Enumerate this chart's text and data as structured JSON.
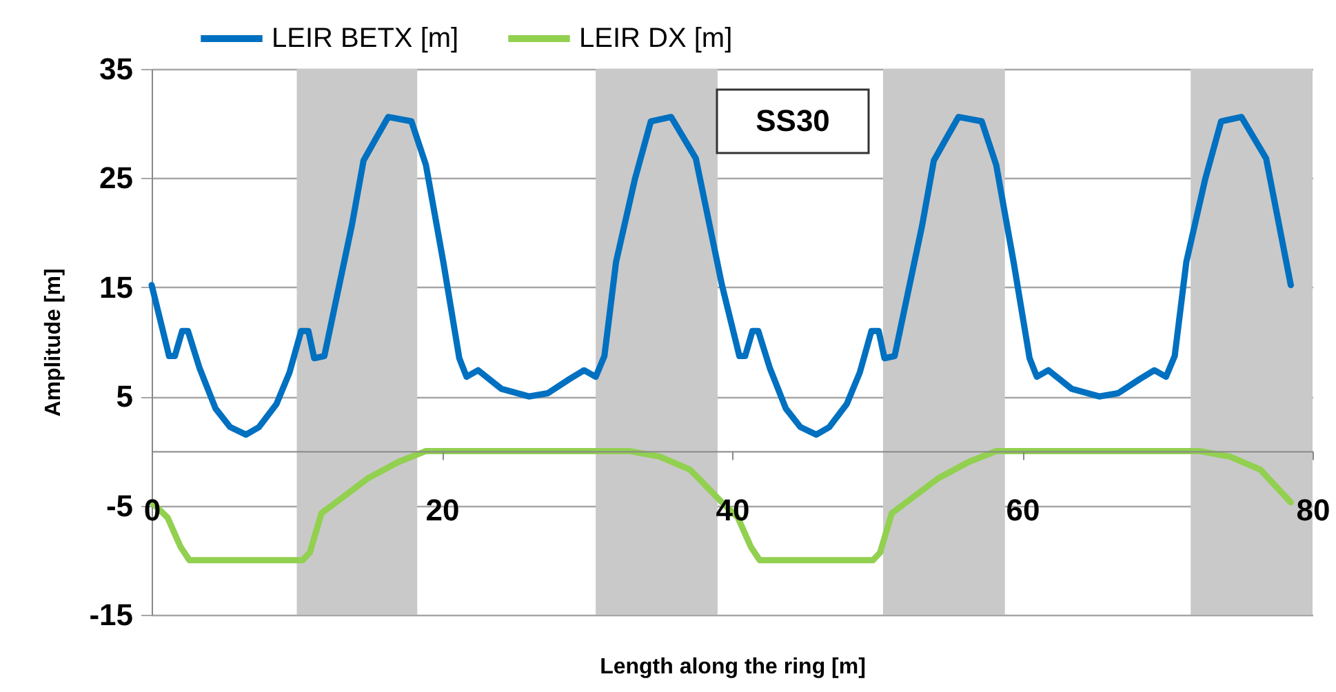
{
  "chart_data": {
    "type": "line",
    "xlabel": "Length along the ring [m]",
    "ylabel": "Amplitude [m]",
    "xlim": [
      0,
      80
    ],
    "ylim": [
      -15,
      35
    ],
    "xticks": [
      0,
      20,
      40,
      60,
      80
    ],
    "yticks": [
      -15,
      -5,
      5,
      15,
      25,
      35
    ],
    "grid": "y",
    "legend": "top",
    "line_style": "solid",
    "marker": "none",
    "annotations": [
      "SS30"
    ],
    "bands": [
      {
        "axis": "x",
        "from": 10.0,
        "to": 18.3,
        "color": "#c9c9c9"
      },
      {
        "axis": "x",
        "from": 30.6,
        "to": 39.0,
        "color": "#c9c9c9"
      },
      {
        "axis": "x",
        "from": 50.4,
        "to": 58.8,
        "color": "#c9c9c9"
      },
      {
        "axis": "x",
        "from": 71.6,
        "to": 80,
        "color": "#c9c9c9"
      }
    ],
    "series": [
      {
        "name": "LEIR BETX [m]",
        "color": "#0070c0",
        "x": [
          0,
          1.2,
          1.6,
          2.1,
          2.5,
          3.3,
          4.4,
          5.4,
          6.5,
          7.4,
          8.6,
          9.5,
          10.3,
          10.8,
          11.2,
          11.9,
          12.8,
          13.8,
          14.6,
          15.4,
          16.3,
          17.9,
          18.9,
          20.1,
          21.2,
          21.7,
          22.5,
          24.1,
          26.0,
          27.3,
          28.8,
          29.8,
          30.6,
          31.2,
          32.0,
          33.3,
          34.4,
          35.8,
          37.5,
          39.3,
          40.5,
          40.9,
          41.4,
          41.8,
          42.6,
          43.7,
          44.7,
          45.8,
          46.7,
          47.9,
          48.8,
          49.6,
          50.1,
          50.5,
          51.2,
          52.1,
          53.1,
          53.9,
          54.7,
          55.6,
          57.2,
          58.2,
          59.4,
          60.5,
          61.0,
          61.8,
          63.4,
          65.3,
          66.6,
          68.1,
          69.1,
          69.9,
          70.5,
          71.3,
          72.6,
          73.7,
          75.1,
          76.8,
          78.5
        ],
        "values": [
          15.2,
          8.7,
          8.7,
          11.0,
          11.0,
          7.6,
          3.9,
          2.2,
          1.5,
          2.2,
          4.3,
          7.2,
          11.0,
          11.0,
          8.5,
          8.7,
          14.4,
          20.7,
          26.6,
          28.5,
          30.6,
          30.2,
          26.2,
          17.3,
          8.5,
          6.8,
          7.4,
          5.7,
          5.0,
          5.3,
          6.6,
          7.4,
          6.8,
          8.7,
          17.3,
          24.9,
          30.2,
          30.6,
          26.8,
          15.2,
          8.7,
          8.7,
          11.0,
          11.0,
          7.6,
          3.9,
          2.2,
          1.5,
          2.2,
          4.3,
          7.2,
          11.0,
          11.0,
          8.5,
          8.7,
          14.4,
          20.7,
          26.6,
          28.5,
          30.6,
          30.2,
          26.2,
          17.3,
          8.5,
          6.8,
          7.4,
          5.7,
          5.0,
          5.3,
          6.6,
          7.4,
          6.8,
          8.7,
          17.3,
          24.9,
          30.2,
          30.6,
          26.8,
          15.2
        ]
      },
      {
        "name": "LEIR DX [m]",
        "color": "#92d050",
        "x": [
          0,
          1.1,
          2.0,
          2.6,
          10.4,
          10.9,
          11.7,
          12.5,
          14.9,
          17.0,
          18.9,
          32.9,
          35.0,
          37.1,
          39.3,
          40.4,
          41.3,
          41.9,
          49.7,
          50.2,
          51.0,
          51.8,
          54.2,
          56.3,
          58.2,
          72.2,
          74.3,
          76.4,
          78.5
        ],
        "values": [
          -4.7,
          -6.1,
          -8.8,
          -10,
          -10,
          -9.3,
          -5.7,
          -4.9,
          -2.5,
          -1.0,
          0,
          0,
          -0.5,
          -1.7,
          -4.7,
          -6.1,
          -8.8,
          -10,
          -10,
          -9.3,
          -5.7,
          -4.9,
          -2.5,
          -1.0,
          0,
          0,
          -0.5,
          -1.7,
          -4.7
        ]
      }
    ]
  }
}
